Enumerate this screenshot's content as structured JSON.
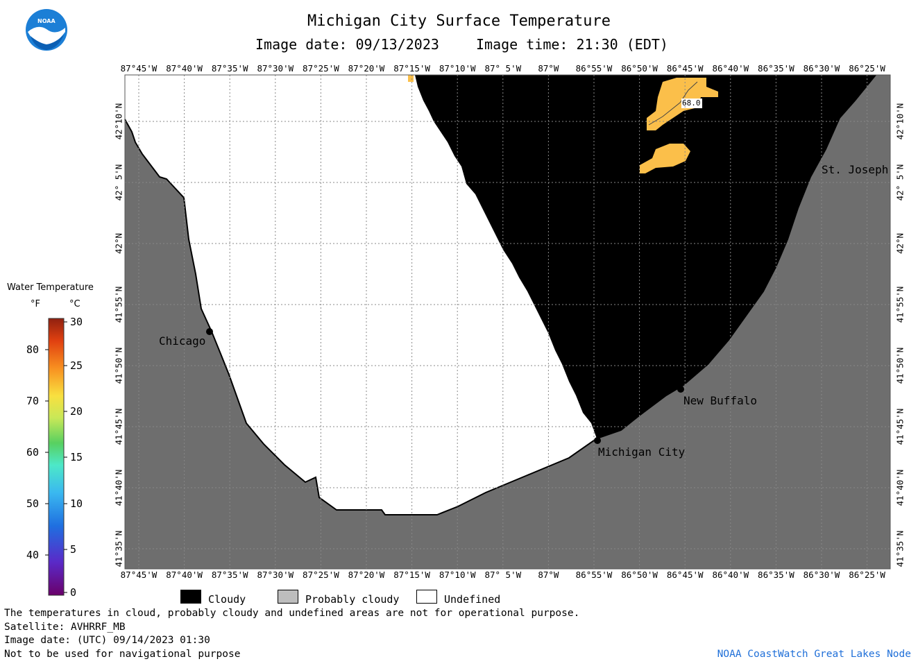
{
  "title": "Michigan City Surface Temperature",
  "image_date_label": "Image date: 09/13/2023",
  "image_time_label": "Image time: 21:30 (EDT)",
  "logo_text": "NOAA",
  "lon_ticks": [
    "87°45'W",
    "87°40'W",
    "87°35'W",
    "87°30'W",
    "87°25'W",
    "87°20'W",
    "87°15'W",
    "87°10'W",
    "87° 5'W",
    "87°W",
    "86°55'W",
    "86°50'W",
    "86°45'W",
    "86°40'W",
    "86°35'W",
    "86°30'W",
    "86°25'W"
  ],
  "lat_ticks": [
    "42°10'N",
    "42° 5'N",
    "42°N",
    "41°55'N",
    "41°50'N",
    "41°45'N",
    "41°40'N",
    "41°35'N"
  ],
  "cities": {
    "chicago": "Chicago",
    "michigan_city": "Michigan City",
    "new_buffalo": "New Buffalo",
    "st_joseph": "St. Joseph"
  },
  "contour_label": "68.0",
  "legend": {
    "title": "Water Temperature",
    "unit_f": "°F",
    "unit_c": "°C",
    "f_labels": [
      "80",
      "70",
      "60",
      "50",
      "40"
    ],
    "c_labels": [
      "30",
      "25",
      "20",
      "15",
      "10",
      "5",
      "0"
    ]
  },
  "key": {
    "cloudy": "Cloudy",
    "probably_cloudy": "Probably cloudy",
    "undefined": "Undefined"
  },
  "footer": {
    "line1": "The temperatures in cloud, probably cloudy and undefined areas are not for operational purpose.",
    "line2": "Satellite: AVHRRF_MB",
    "line3": "Image date: (UTC) 09/14/2023  01:30",
    "line4": "Not to be used for navigational purpose",
    "credit": "NOAA CoastWatch Great Lakes Node"
  },
  "colors": {
    "land": "#6e6e6e",
    "cloud": "#000000",
    "undefined": "#ffffff",
    "warm_water": "#fbbf4a",
    "credit": "#1f6fd8"
  }
}
